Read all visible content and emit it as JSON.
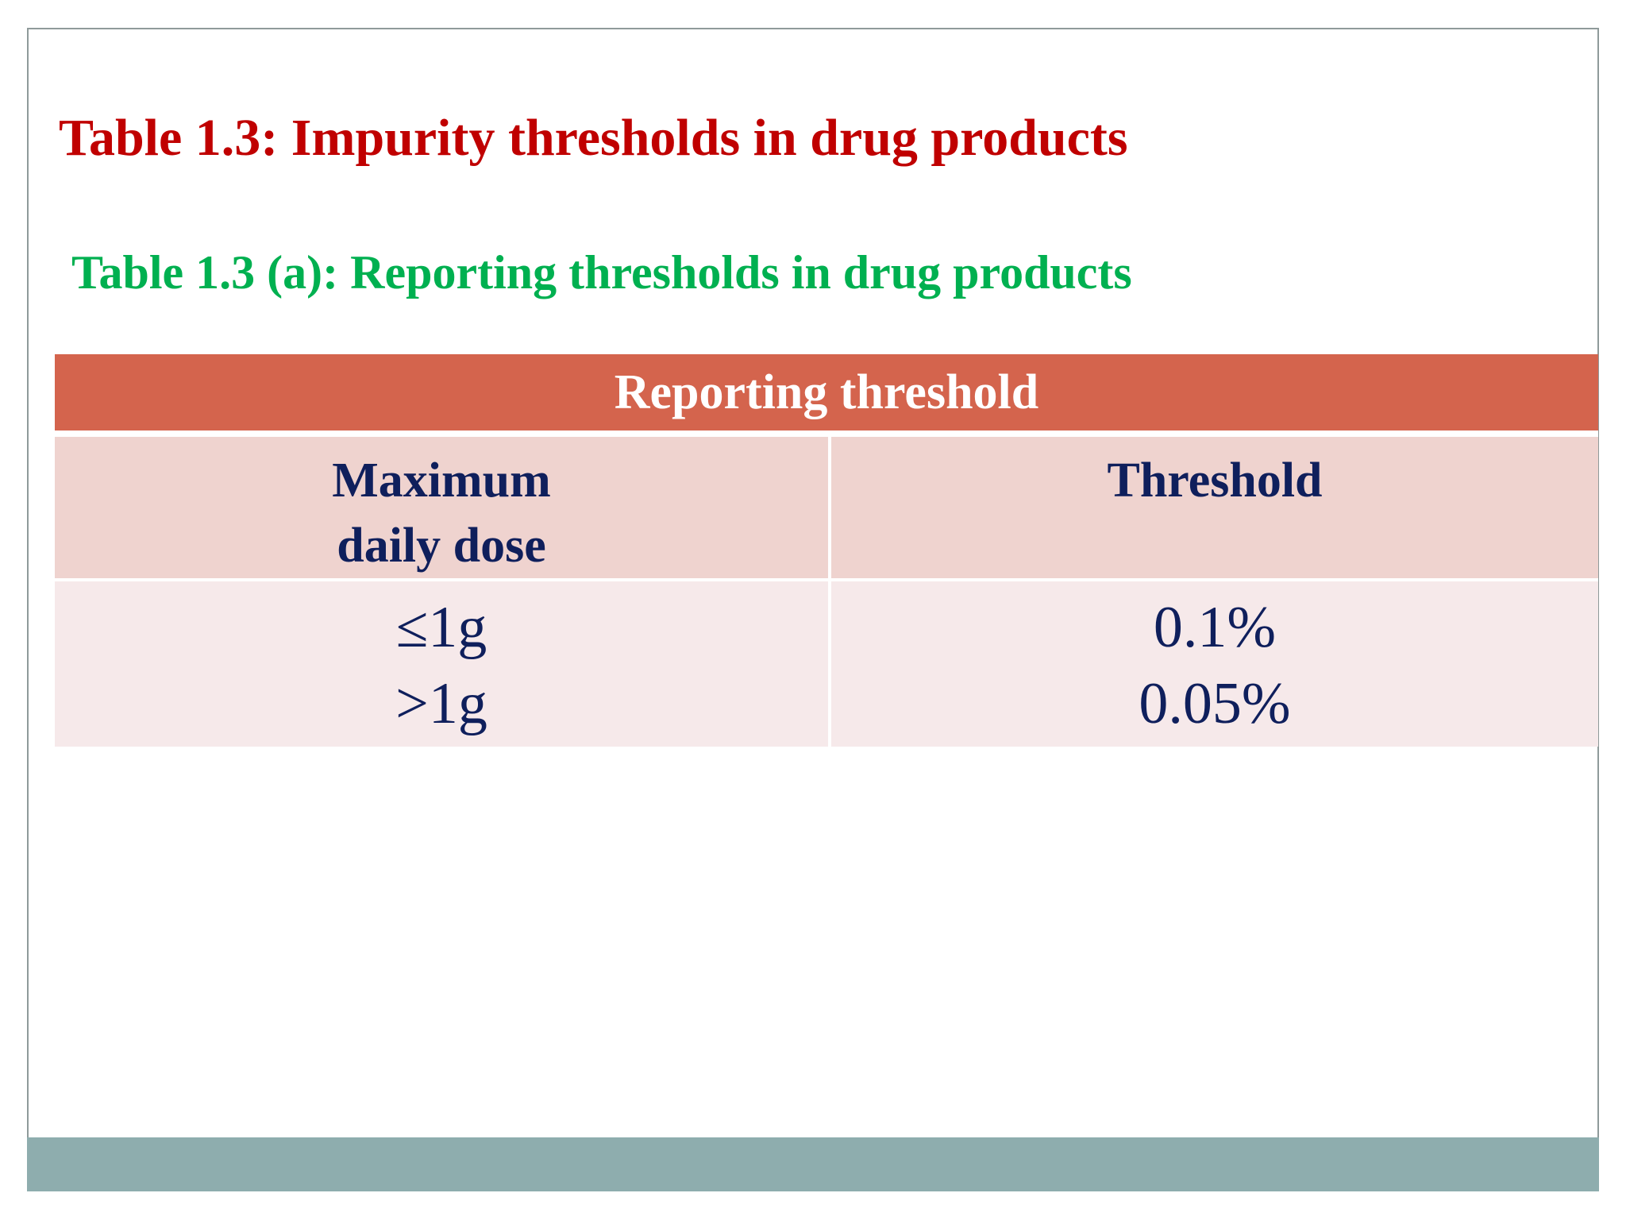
{
  "title": "Table 1.3: Impurity thresholds in drug products",
  "subtitle": "Table 1.3 (a): Reporting thresholds in drug products",
  "table": {
    "band_label": "Reporting threshold",
    "columns": [
      {
        "lines": [
          "Maximum",
          "daily dose"
        ]
      },
      {
        "lines": [
          "Threshold"
        ]
      }
    ],
    "rows": [
      {
        "dose": "≤1g",
        "threshold": "0.1%"
      },
      {
        "dose": ">1g",
        "threshold": "0.05%"
      }
    ]
  },
  "colors": {
    "title": "#c00000",
    "subtitle": "#00b050",
    "band": "#d4644d",
    "header_fill": "#efd3cf",
    "body_fill": "#f6e9ea",
    "text_dark": "#0f1f5c",
    "footer_bar": "#8eadae",
    "slide_border": "#8f9a9a"
  }
}
